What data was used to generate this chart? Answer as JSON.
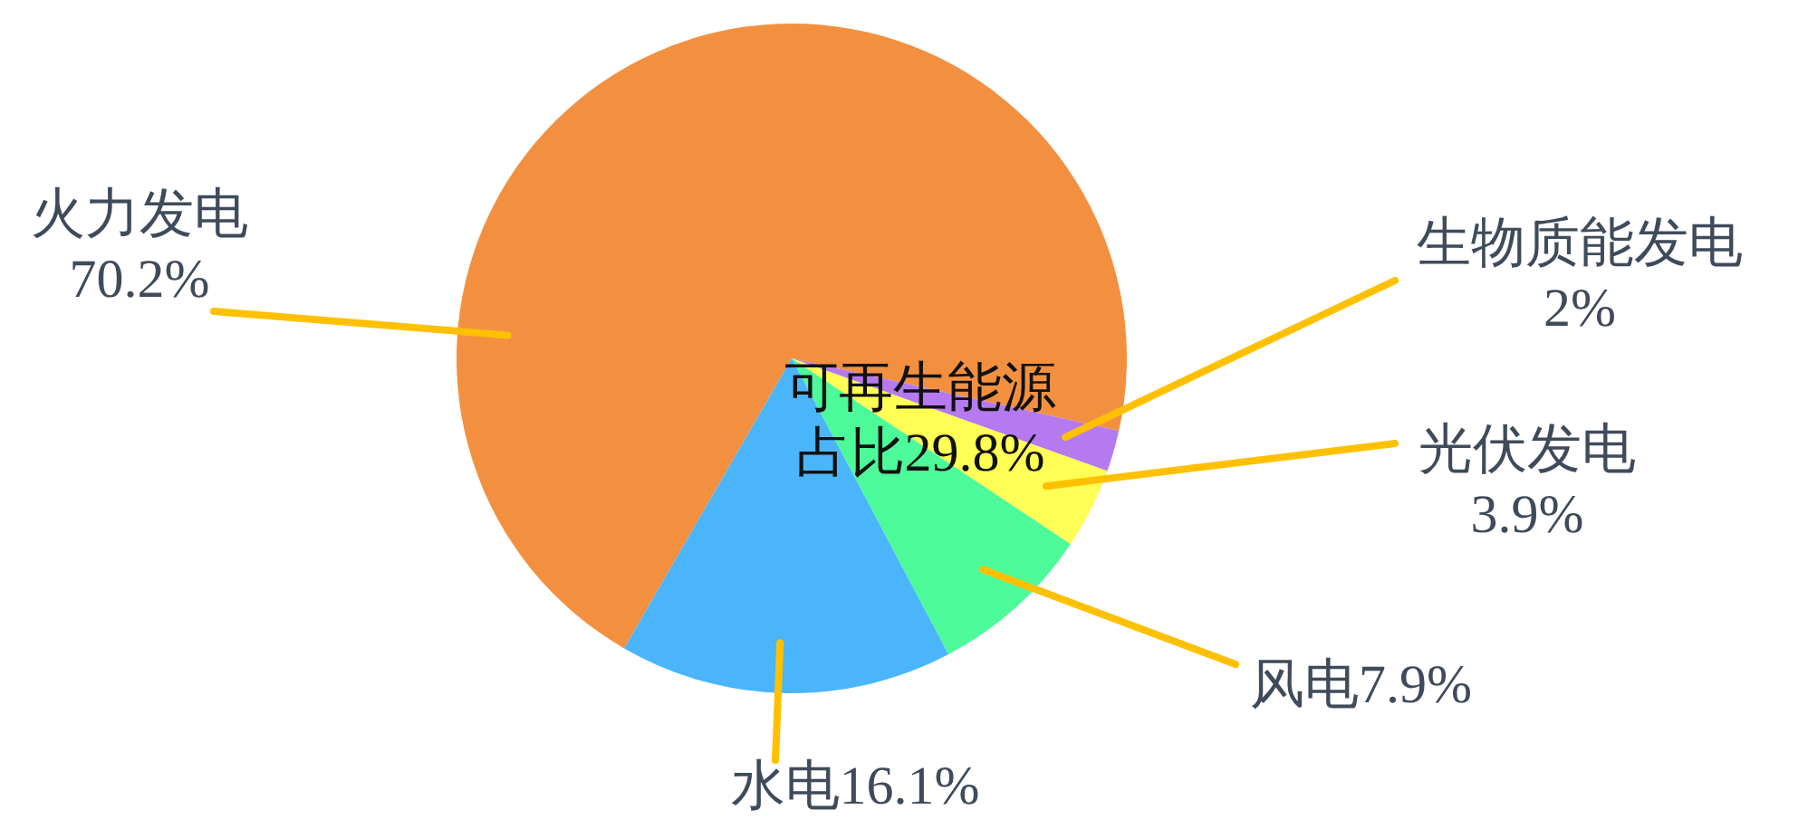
{
  "chart_data": {
    "type": "pie",
    "categories": [
      "火力发电",
      "生物质能发电",
      "光伏发电",
      "风电",
      "水电"
    ],
    "values": [
      70.2,
      2,
      3.9,
      7.9,
      16.1
    ],
    "colors": [
      "#f39040",
      "#b57af0",
      "#ffff55",
      "#4dfa9a",
      "#4ab5fb"
    ],
    "value_labels": [
      "70.2%",
      "2%",
      "3.9%",
      "7.9%",
      "16.1%"
    ],
    "annotations": [
      "可再生能源占比29.8%"
    ]
  }
}
